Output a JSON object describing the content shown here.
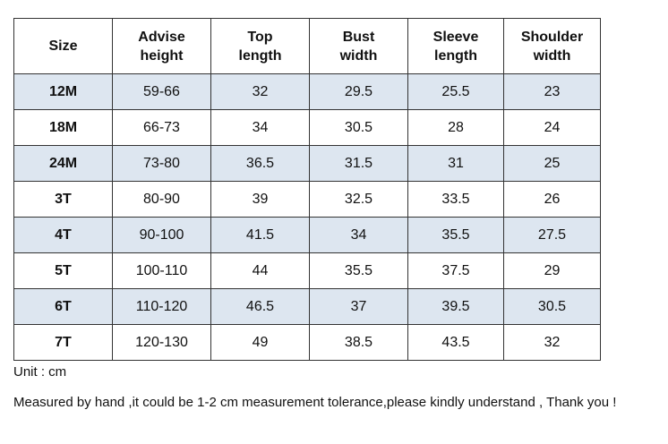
{
  "table": {
    "header": [
      "Size",
      "Advise\nheight",
      "Top\nlength",
      "Bust\nwidth",
      "Sleeve\nlength",
      "Shoulder\nwidth"
    ],
    "rows": [
      [
        "12M",
        "59-66",
        "32",
        "29.5",
        "25.5",
        "23"
      ],
      [
        "18M",
        "66-73",
        "34",
        "30.5",
        "28",
        "24"
      ],
      [
        "24M",
        "73-80",
        "36.5",
        "31.5",
        "31",
        "25"
      ],
      [
        "3T",
        "80-90",
        "39",
        "32.5",
        "33.5",
        "26"
      ],
      [
        "4T",
        "90-100",
        "41.5",
        "34",
        "35.5",
        "27.5"
      ],
      [
        "5T",
        "100-110",
        "44",
        "35.5",
        "37.5",
        "29"
      ],
      [
        "6T",
        "110-120",
        "46.5",
        "37",
        "39.5",
        "30.5"
      ],
      [
        "7T",
        "120-130",
        "49",
        "38.5",
        "43.5",
        "32"
      ]
    ]
  },
  "notes": [
    "Unit : cm",
    "Measured by hand ,it could be 1-2 cm measurement tolerance,please kindly understand , Thank you !"
  ]
}
